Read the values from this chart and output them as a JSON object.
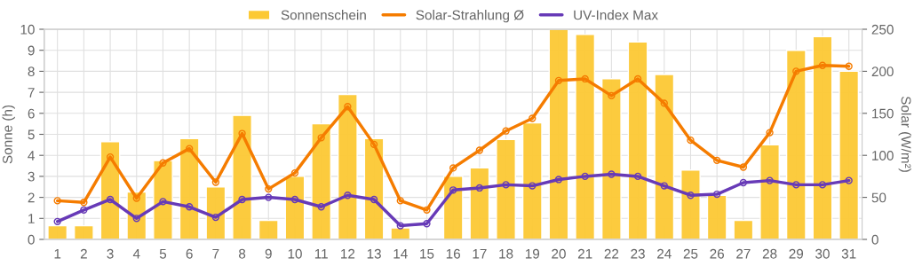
{
  "chart_data": {
    "type": "bar",
    "categories": [
      "1",
      "2",
      "3",
      "4",
      "5",
      "6",
      "7",
      "8",
      "9",
      "10",
      "11",
      "12",
      "13",
      "14",
      "15",
      "16",
      "17",
      "18",
      "19",
      "20",
      "21",
      "22",
      "23",
      "24",
      "25",
      "26",
      "27",
      "28",
      "29",
      "30",
      "31"
    ],
    "ylabel": "Sonne (h)",
    "y2label": "Solar (W/m²)",
    "ylim": [
      0,
      10
    ],
    "yticks": [
      0,
      1,
      2,
      3,
      4,
      5,
      6,
      7,
      8,
      9,
      10
    ],
    "y2lim": [
      0,
      250
    ],
    "y2ticks": [
      0,
      50,
      100,
      150,
      200,
      250
    ],
    "grid": true,
    "legend": "top",
    "marker": "circle",
    "line_style": "solid",
    "series": [
      {
        "name": "Sonnenschein",
        "color": "#fcc934",
        "values": [
          0.65,
          0.65,
          4.65,
          2.25,
          3.75,
          4.8,
          2.5,
          5.9,
          0.9,
          3.0,
          5.5,
          6.9,
          4.8,
          0.55,
          null,
          3.0,
          3.4,
          4.75,
          5.55,
          10.0,
          9.75,
          7.65,
          9.4,
          7.85,
          3.3,
          2.1,
          0.9,
          4.5,
          9.0,
          9.65,
          8.0
        ]
      },
      {
        "name": "Solar-Strahlung Ø",
        "type": "line",
        "axis": "y2",
        "color": "#f57c00",
        "values": [
          46,
          44,
          98,
          49,
          91,
          108,
          68,
          126,
          60,
          79,
          121,
          158,
          113,
          46,
          35,
          85,
          106,
          129,
          144,
          189,
          191,
          171,
          191,
          162,
          118,
          94,
          86,
          127,
          200,
          207,
          206
        ]
      },
      {
        "name": "UV-Index Max",
        "type": "line",
        "color": "#673ab7",
        "values": [
          0.85,
          1.4,
          1.9,
          1.0,
          1.8,
          1.55,
          1.05,
          1.9,
          2.0,
          1.9,
          1.55,
          2.1,
          1.9,
          0.65,
          0.75,
          2.35,
          2.45,
          2.6,
          2.55,
          2.85,
          3.0,
          3.1,
          3.0,
          2.55,
          2.1,
          2.15,
          2.7,
          2.8,
          2.6,
          2.6,
          2.8
        ]
      }
    ]
  }
}
